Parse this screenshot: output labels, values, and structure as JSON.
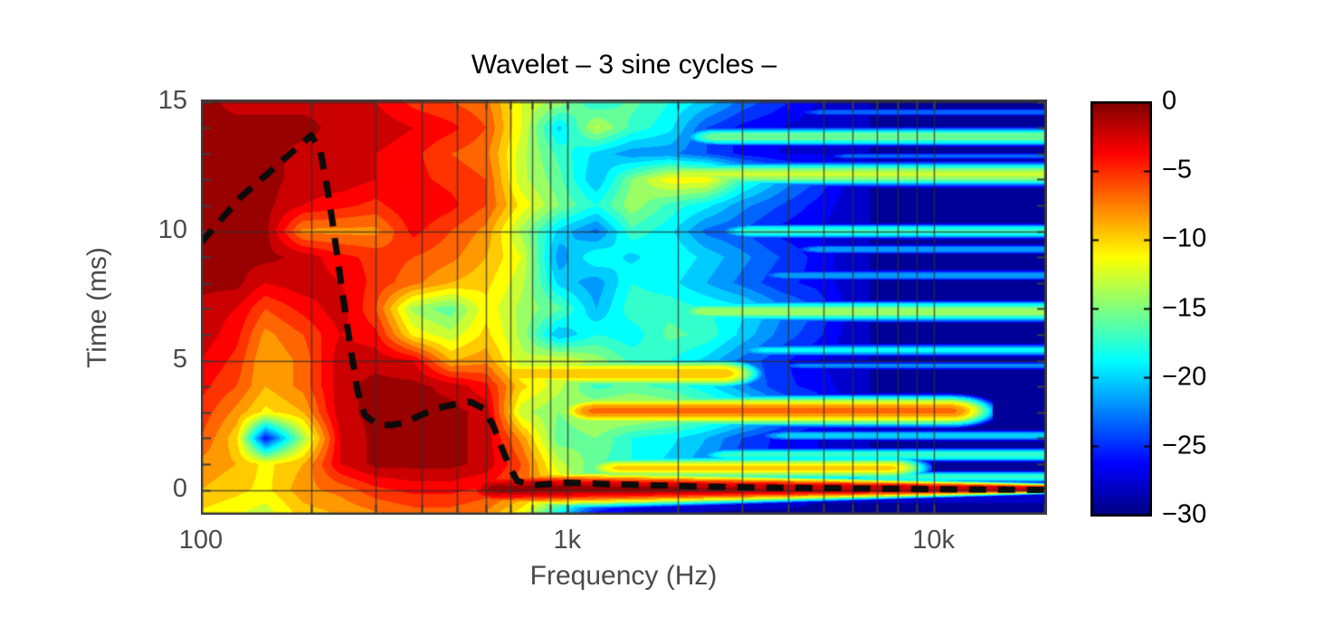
{
  "title": "Wavelet – 3 sine cycles –",
  "axes": {
    "xlabel": "Frequency (Hz)",
    "ylabel": "Time (ms)",
    "x_ticks": [
      {
        "f": 100,
        "label": "100"
      },
      {
        "f": 1000,
        "label": "1k"
      },
      {
        "f": 10000,
        "label": "10k"
      }
    ],
    "x_gridlines_hz": [
      200,
      300,
      400,
      500,
      600,
      700,
      800,
      900,
      1000,
      2000,
      3000,
      4000,
      5000,
      6000,
      7000,
      8000,
      9000,
      10000,
      20000
    ],
    "y_ticks": [
      {
        "t": 0,
        "label": "0"
      },
      {
        "t": 5,
        "label": "5"
      },
      {
        "t": 10,
        "label": "10"
      },
      {
        "t": 15,
        "label": "15"
      }
    ],
    "y_gridlines_ms": [
      0,
      5,
      10,
      15
    ],
    "y_minor_ticks_ms": [
      0,
      1,
      2,
      3,
      4,
      5,
      6,
      7,
      8,
      9,
      10,
      11,
      12,
      13,
      14,
      15
    ],
    "freq_range_hz": [
      100,
      20400
    ],
    "time_range_ms": [
      -0.96,
      15.09
    ]
  },
  "colorbar": {
    "colormap": "jet",
    "min_db": -30,
    "max_db": 0,
    "ticks": [
      {
        "value": 0,
        "label": "0"
      },
      {
        "value": -5,
        "label": "−5"
      },
      {
        "value": -10,
        "label": "−10"
      },
      {
        "value": -15,
        "label": "−15"
      },
      {
        "value": -20,
        "label": "−20"
      },
      {
        "value": -25,
        "label": "−25"
      },
      {
        "value": -30,
        "label": "−30"
      }
    ]
  },
  "style": {
    "background": "#ffffff",
    "title_color": "#000000",
    "axis_text_color": "#4a4a4a",
    "axis_frame_color": "#3d3d3d",
    "gridline_color": "rgba(45,45,45,0.75)",
    "overlay_line_color": "#0b0b0b"
  },
  "chart_data": {
    "type": "heatmap",
    "title": "Wavelet – 3 sine cycles –",
    "xlabel": "Frequency (Hz)",
    "ylabel": "Time (ms)",
    "colormap": "jet",
    "value_unit": "dB",
    "value_range_db": [
      -30,
      0
    ],
    "contour_step_db": 1.5,
    "x_scale": "log",
    "grid": {
      "freqs_hz": [
        100,
        125,
        150,
        190,
        240,
        300,
        380,
        480,
        600,
        750,
        950,
        1200,
        1500,
        1900,
        2400,
        3000,
        3800,
        4800,
        6000,
        7500,
        9500,
        12000,
        15000,
        20000
      ],
      "times_ms": [
        -1,
        0,
        1,
        2,
        3,
        4,
        5,
        6,
        7,
        8,
        9,
        10,
        11,
        12,
        13,
        14,
        15,
        16
      ],
      "values_db": [
        [
          -11,
          -12,
          -13,
          -10,
          -9,
          -8,
          -7,
          -7,
          -8,
          -12,
          -20,
          -27,
          -28,
          -28,
          -29,
          -29,
          -29,
          -29,
          -29,
          -29,
          -29,
          -29,
          -29,
          -29
        ],
        [
          -9,
          -10,
          -11,
          -8,
          -7,
          -5,
          -4,
          -4,
          -5,
          -7,
          -10,
          -18,
          -24,
          -26,
          -26,
          -27,
          -27,
          -28,
          -28,
          -28,
          -28,
          -28,
          -28,
          -28
        ],
        [
          -8,
          -9,
          -11,
          -9,
          -3,
          -1,
          -1,
          -1,
          -2,
          -6,
          -13,
          -16,
          -18,
          -20,
          -22,
          -25,
          -26,
          -27,
          -28,
          -29,
          -29,
          -29,
          -29,
          -29
        ],
        [
          -6,
          -10,
          -26,
          -14,
          -3,
          -1,
          -1,
          -1,
          -2,
          -8,
          -16,
          -15,
          -18,
          -19,
          -21,
          -24,
          -26,
          -27,
          -28,
          -29,
          -29,
          -29,
          -29,
          -29
        ],
        [
          -5,
          -8,
          -11,
          -9,
          -2,
          -1,
          -1,
          -1,
          -2,
          -13,
          -15,
          -13,
          -12,
          -13,
          -15,
          -17,
          -21,
          -24,
          -28,
          -29,
          -29,
          -29,
          -29,
          -29
        ],
        [
          -4,
          -6,
          -9,
          -7,
          -2,
          -1,
          -1,
          -2,
          -4,
          -10,
          -13,
          -17,
          -16,
          -17,
          -19,
          -22,
          -25,
          -26,
          -28,
          -29,
          -29,
          -29,
          -29,
          -29
        ],
        [
          -3,
          -5,
          -9,
          -7,
          -2,
          -2,
          -3,
          -9,
          -8,
          -13,
          -12,
          -14,
          -17,
          -18,
          -20,
          -23,
          -25,
          -27,
          -28,
          -29,
          -29,
          -29,
          -29,
          -29
        ],
        [
          -2,
          -4,
          -8,
          -6,
          -3,
          -4,
          -11,
          -13,
          -10,
          -14,
          -21,
          -18,
          -19,
          -16,
          -17,
          -20,
          -23,
          -25,
          -28,
          -29,
          -29,
          -29,
          -29,
          -29
        ],
        [
          -2,
          -3,
          -6,
          -4,
          -2,
          -6,
          -14,
          -16,
          -11,
          -14,
          -16,
          -21,
          -17,
          -17,
          -18,
          -19,
          -22,
          -24,
          -28,
          -29,
          -29,
          -29,
          -29,
          -29
        ],
        [
          -1,
          -1,
          -3,
          -2,
          -3,
          -5,
          -7,
          -9,
          -10,
          -13,
          -20,
          -22,
          -18,
          -19,
          -21,
          -23,
          -25,
          -26,
          -28,
          -29,
          -29,
          -29,
          -29,
          -29
        ],
        [
          -1,
          -1,
          -1,
          -2,
          -4,
          -5,
          -6,
          -7,
          -9,
          -12,
          -22,
          -18,
          -20,
          -18,
          -20,
          -22,
          -24,
          -26,
          -28,
          -29,
          -29,
          -29,
          -29,
          -29
        ],
        [
          -1,
          -1,
          -1,
          -8,
          -8,
          -8,
          -4,
          -6,
          -8,
          -14,
          -20,
          -23,
          -17,
          -19,
          -23,
          -24,
          -26,
          -27,
          -28,
          -29,
          -29,
          -29,
          -29,
          -29
        ],
        [
          -1,
          -1,
          -1,
          -3,
          -4,
          -5,
          -3,
          -4,
          -6,
          -11,
          -15,
          -18,
          -14,
          -17,
          -19,
          -22,
          -24,
          -26,
          -28,
          -29,
          -29,
          -29,
          -29,
          -29
        ],
        [
          -1,
          -1,
          -1,
          -2,
          -2,
          -3,
          -4,
          -5,
          -6,
          -13,
          -16,
          -21,
          -15,
          -11,
          -11,
          -17,
          -21,
          -24,
          -28,
          -29,
          -29,
          -29,
          -29,
          -29
        ],
        [
          -1,
          -1,
          -1,
          -2,
          -2,
          -3,
          -4,
          -6,
          -7,
          -13,
          -17,
          -20,
          -22,
          -22,
          -24,
          -26,
          -27,
          -27,
          -28,
          -29,
          -29,
          -29,
          -29,
          -29
        ],
        [
          -1,
          -1,
          -1,
          -1,
          -2,
          -2,
          -3,
          -4,
          -6,
          -12,
          -20,
          -13,
          -17,
          -19,
          -24,
          -26,
          -27,
          -28,
          -28,
          -29,
          -29,
          -29,
          -29,
          -29
        ],
        [
          -1,
          -2,
          -2,
          -2,
          -2,
          -3,
          -5,
          -6,
          -7,
          -12,
          -14,
          -18,
          -16,
          -18,
          -20,
          -23,
          -25,
          -27,
          -28,
          -29,
          -29,
          -29,
          -29,
          -29
        ],
        [
          -1,
          -2,
          -2,
          -2,
          -2,
          -3,
          -5,
          -6,
          -8,
          -12,
          -14,
          -18,
          -16,
          -18,
          -20,
          -23,
          -25,
          -27,
          -28,
          -29,
          -29,
          -29,
          -29,
          -29
        ]
      ]
    },
    "reflection_streaks": [
      {
        "t_ms": 14.6,
        "f1_hz": 5000,
        "f2_hz": 20400,
        "level_db": -23,
        "halfwidth_ms": 0.18
      },
      {
        "t_ms": 13.65,
        "f1_hz": 2600,
        "f2_hz": 20400,
        "level_db": -15,
        "halfwidth_ms": 0.32
      },
      {
        "t_ms": 12.9,
        "f1_hz": 6000,
        "f2_hz": 20400,
        "level_db": -23,
        "halfwidth_ms": 0.16
      },
      {
        "t_ms": 12.2,
        "f1_hz": 2100,
        "f2_hz": 20400,
        "level_db": -13,
        "halfwidth_ms": 0.4
      },
      {
        "t_ms": 10.0,
        "f1_hz": 3200,
        "f2_hz": 20400,
        "level_db": -17,
        "halfwidth_ms": 0.28
      },
      {
        "t_ms": 9.3,
        "f1_hz": 5000,
        "f2_hz": 20400,
        "level_db": -21,
        "halfwidth_ms": 0.2
      },
      {
        "t_ms": 8.3,
        "f1_hz": 4000,
        "f2_hz": 20400,
        "level_db": -21,
        "halfwidth_ms": 0.22
      },
      {
        "t_ms": 6.9,
        "f1_hz": 2400,
        "f2_hz": 20400,
        "level_db": -14,
        "halfwidth_ms": 0.35
      },
      {
        "t_ms": 5.4,
        "f1_hz": 3500,
        "f2_hz": 20400,
        "level_db": -19,
        "halfwidth_ms": 0.25
      },
      {
        "t_ms": 4.5,
        "f1_hz": 700,
        "f2_hz": 2600,
        "level_db": -9,
        "halfwidth_ms": 0.45
      },
      {
        "t_ms": 4.8,
        "f1_hz": 4500,
        "f2_hz": 20400,
        "level_db": -22,
        "halfwidth_ms": 0.18
      },
      {
        "t_ms": 3.05,
        "f1_hz": 1200,
        "f2_hz": 11000,
        "level_db": -7,
        "halfwidth_ms": 0.45
      },
      {
        "t_ms": 2.1,
        "f1_hz": 4000,
        "f2_hz": 20400,
        "level_db": -20,
        "halfwidth_ms": 0.22
      },
      {
        "t_ms": 1.35,
        "f1_hz": 2800,
        "f2_hz": 20400,
        "level_db": -17,
        "halfwidth_ms": 0.26
      },
      {
        "t_ms": 0.85,
        "f1_hz": 1400,
        "f2_hz": 7500,
        "level_db": -10,
        "halfwidth_ms": 0.35
      },
      {
        "t_ms": 0.5,
        "f1_hz": 7000,
        "f2_hz": 20400,
        "level_db": -17,
        "halfwidth_ms": 0.22
      }
    ],
    "direct_sound_ridge": {
      "t_ms": 0.05,
      "f1_hz": 640,
      "f2_hz": 20400,
      "level_db_start": -1,
      "level_db_end": -2,
      "halfwidth_ms_start": 0.55,
      "halfwidth_ms_end": 0.14
    },
    "overlay_dashed_line": {
      "meaning": "time-frequency trace",
      "points_f_hz_t_ms": [
        [
          100,
          9.55
        ],
        [
          128,
          11.3
        ],
        [
          160,
          12.5
        ],
        [
          200,
          13.7
        ],
        [
          212,
          13.1
        ],
        [
          221,
          11.7
        ],
        [
          229,
          10.3
        ],
        [
          238,
          8.6
        ],
        [
          248,
          6.8
        ],
        [
          258,
          5.2
        ],
        [
          268,
          3.8
        ],
        [
          280,
          2.9
        ],
        [
          300,
          2.55
        ],
        [
          330,
          2.5
        ],
        [
          360,
          2.6
        ],
        [
          400,
          2.9
        ],
        [
          440,
          3.15
        ],
        [
          490,
          3.3
        ],
        [
          545,
          3.4
        ],
        [
          590,
          3.15
        ],
        [
          625,
          2.55
        ],
        [
          660,
          1.7
        ],
        [
          695,
          0.9
        ],
        [
          730,
          0.35
        ],
        [
          800,
          0.18
        ],
        [
          1000,
          0.28
        ],
        [
          1300,
          0.22
        ],
        [
          1700,
          0.18
        ],
        [
          2500,
          0.12
        ],
        [
          4000,
          0.08
        ],
        [
          7000,
          0.05
        ],
        [
          12000,
          0.02
        ],
        [
          20000,
          0.0
        ]
      ]
    }
  }
}
